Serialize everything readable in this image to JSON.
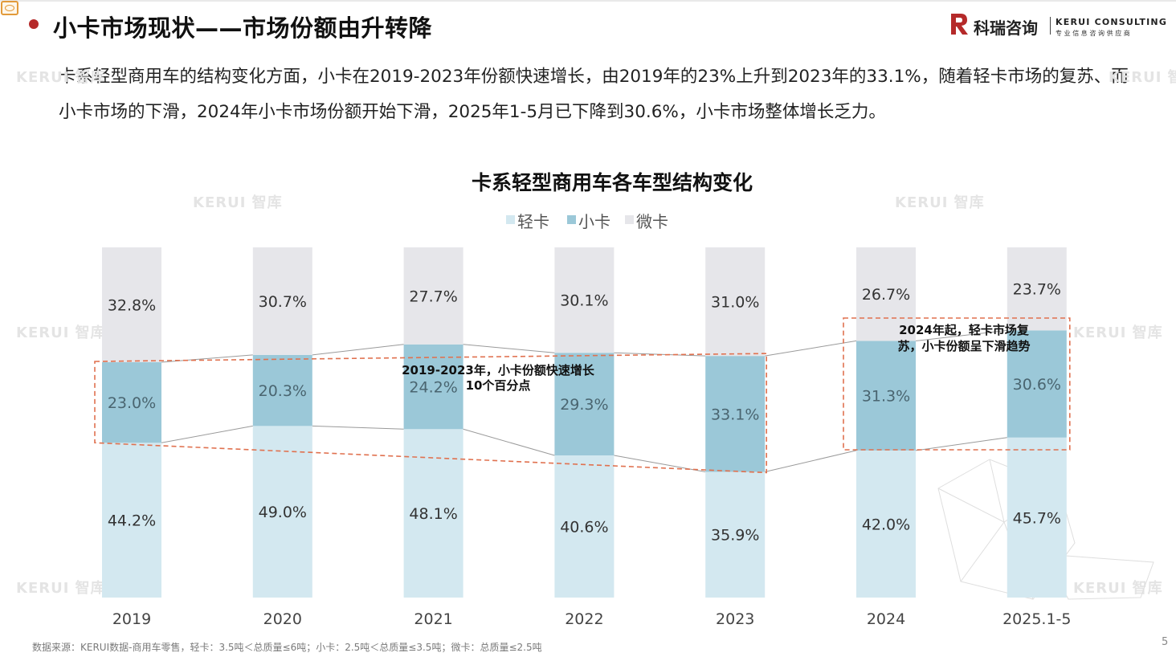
{
  "header": {
    "title": "小卡市场现状——市场份额由升转降",
    "logo_cn": "科瑞咨询",
    "logo_en": "KERUI CONSULTING",
    "logo_sub": "专业信息咨询供应商"
  },
  "intro_text": "卡系轻型商用车的结构变化方面，小卡在2019-2023年份额快速增长，由2019年的23%上升到2023年的33.1%，随着轻卡市场的复苏、而小卡市场的下滑，2024年小卡市场份额开始下滑，2025年1-5月已下降到30.6%，小卡市场整体增长乏力。",
  "watermark": "KERUI 智库",
  "colors": {
    "light_truck": "#d3e8f0",
    "small_truck": "#9bc8d8",
    "micro_truck": "#e6e6ea",
    "accent": "#b52a2a",
    "callout_border": "#e0714f"
  },
  "chart_data": {
    "type": "bar",
    "stacked": true,
    "percent": true,
    "title": "卡系轻型商用车各车型结构变化",
    "categories": [
      "2019",
      "2020",
      "2021",
      "2022",
      "2023",
      "2024",
      "2025.1-5"
    ],
    "series": [
      {
        "name": "轻卡",
        "values": [
          44.2,
          49.0,
          48.1,
          40.6,
          35.9,
          42.0,
          45.7
        ],
        "labels": [
          "44.2%",
          "49.0%",
          "48.1%",
          "40.6%",
          "35.9%",
          "42.0%",
          "45.7%"
        ]
      },
      {
        "name": "小卡",
        "values": [
          23.0,
          20.3,
          24.2,
          29.3,
          33.1,
          31.3,
          30.6
        ],
        "labels": [
          "23.0%",
          "20.3%",
          "24.2%",
          "29.3%",
          "33.1%",
          "31.3%",
          "30.6%"
        ]
      },
      {
        "name": "微卡",
        "values": [
          32.8,
          30.7,
          27.7,
          30.1,
          31.0,
          26.7,
          23.7
        ],
        "labels": [
          "32.8%",
          "30.7%",
          "27.7%",
          "30.1%",
          "31.0%",
          "26.7%",
          "23.7%"
        ]
      }
    ],
    "ylim": [
      0,
      100
    ],
    "legend_position": "top-center",
    "annotations": [
      {
        "text_lines": [
          "2019-2023年，小卡份额快速增长",
          "10个百分点"
        ],
        "from": "2019",
        "to": "2023"
      },
      {
        "text_lines": [
          "2024年起，轻卡市场复",
          "苏，小卡份额呈下滑趋势"
        ],
        "from": "2024",
        "to": "2025.1-5"
      }
    ]
  },
  "footer": {
    "source": "数据来源：KERUI数据-商用车零售，轻卡：3.5吨＜总质量≤6吨；小卡：2.5吨＜总质量≤3.5吨；微卡：总质量≤2.5吨",
    "page_number": "5"
  }
}
